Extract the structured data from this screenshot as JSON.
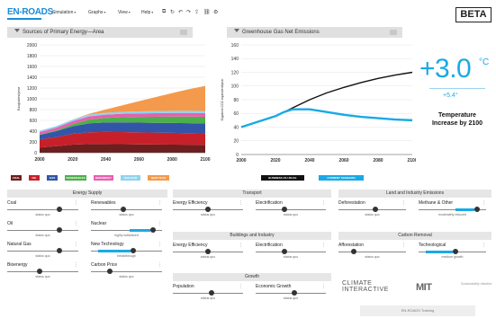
{
  "app": {
    "logo": "EN-ROADS",
    "menus": [
      "Simulation",
      "Graphs",
      "View",
      "Help"
    ],
    "toolbar_icons": [
      "copy-icon",
      "refresh-icon",
      "undo-icon",
      "redo-icon",
      "share-icon",
      "link-icon",
      "settings-icon"
    ],
    "beta_label": "BETA"
  },
  "energy_chart": {
    "title": "Sources of Primary Energy—Area",
    "header_button": "≡",
    "ylabel": "Exajoules/year",
    "legend": [
      {
        "label": "COAL",
        "color": "#6b1f1f"
      },
      {
        "label": "OIL",
        "color": "#c8202a"
      },
      {
        "label": "GAS",
        "color": "#3355a8"
      },
      {
        "label": "RENEWABLES",
        "color": "#4caf4a"
      },
      {
        "label": "BIOENERGY",
        "color": "#e860b0"
      },
      {
        "label": "NUCLEAR",
        "color": "#8fd4ef"
      },
      {
        "label": "NEW TECH",
        "color": "#f49a4c"
      }
    ]
  },
  "ghg_chart": {
    "title": "Greenhouse Gas Net Emissions",
    "header_button": "≡",
    "ylabel": "Gigatons CO2 equivalent/year",
    "legend": [
      {
        "label": "BUSINESS AS USUAL",
        "color": "#111111"
      },
      {
        "label": "CURRENT SCENARIO",
        "color": "#19a9e6"
      }
    ]
  },
  "temperature": {
    "value": "+3.0",
    "unit": "°C",
    "fahrenheit": "+5.4°",
    "label": "Temperature Increase by 2100"
  },
  "chart_data": [
    {
      "type": "area",
      "title": "Sources of Primary Energy—Area",
      "xlabel": "",
      "ylabel": "Exajoules/year",
      "x": [
        2000,
        2010,
        2020,
        2030,
        2040,
        2050,
        2060,
        2070,
        2080,
        2090,
        2100
      ],
      "xlim": [
        2000,
        2100
      ],
      "ylim": [
        0,
        2000
      ],
      "xticks": [
        2000,
        2020,
        2040,
        2060,
        2080,
        2100
      ],
      "yticks": [
        0,
        200,
        400,
        600,
        800,
        1000,
        1200,
        1400,
        1600,
        1800,
        2000
      ],
      "series": [
        {
          "name": "COAL",
          "values": [
            95,
            120,
            150,
            160,
            160,
            158,
            155,
            152,
            150,
            148,
            145
          ]
        },
        {
          "name": "OIL",
          "values": [
            150,
            170,
            200,
            220,
            225,
            225,
            222,
            220,
            218,
            215,
            212
          ]
        },
        {
          "name": "GAS",
          "values": [
            85,
            110,
            140,
            165,
            175,
            180,
            182,
            183,
            184,
            185,
            185
          ]
        },
        {
          "name": "RENEWABLES",
          "values": [
            8,
            15,
            40,
            70,
            85,
            95,
            105,
            112,
            118,
            122,
            125
          ]
        },
        {
          "name": "BIOENERGY",
          "values": [
            45,
            50,
            55,
            60,
            62,
            64,
            65,
            66,
            67,
            68,
            68
          ]
        },
        {
          "name": "NUCLEAR",
          "values": [
            25,
            28,
            30,
            33,
            35,
            37,
            38,
            39,
            40,
            40,
            40
          ]
        },
        {
          "name": "NEW TECH",
          "values": [
            0,
            0,
            0,
            15,
            60,
            120,
            190,
            260,
            330,
            400,
            465
          ]
        }
      ]
    },
    {
      "type": "line",
      "title": "Greenhouse Gas Net Emissions",
      "xlabel": "",
      "ylabel": "Gigatons CO2 equivalent/year",
      "x": [
        2000,
        2010,
        2020,
        2025,
        2030,
        2040,
        2050,
        2060,
        2070,
        2080,
        2090,
        2100
      ],
      "xlim": [
        2000,
        2100
      ],
      "ylim": [
        0,
        160
      ],
      "xticks": [
        2000,
        2020,
        2040,
        2060,
        2080,
        2100
      ],
      "yticks": [
        0,
        20,
        40,
        60,
        80,
        100,
        120,
        140,
        160
      ],
      "series": [
        {
          "name": "BUSINESS AS USUAL",
          "values": [
            40,
            48,
            56,
            62,
            68,
            80,
            90,
            98,
            105,
            111,
            116,
            120
          ]
        },
        {
          "name": "CURRENT SCENARIO",
          "values": [
            40,
            48,
            56,
            62,
            66,
            66,
            62,
            58,
            55,
            53,
            51,
            50
          ]
        }
      ]
    }
  ],
  "panels": {
    "energy_supply": {
      "title": "Energy Supply",
      "sliders": [
        {
          "label": "Coal",
          "status": "status quo",
          "level": 0.75
        },
        {
          "label": "Renewables",
          "status": "status quo",
          "level": 0.45
        },
        {
          "label": "Oil",
          "status": "status quo",
          "level": 0.75
        },
        {
          "label": "Nuclear",
          "status": "highly subsidized",
          "level": 0.9,
          "active": true
        },
        {
          "label": "Natural Gas",
          "status": "status quo",
          "level": 0.75
        },
        {
          "label": "New Technology",
          "status": "breakthrough",
          "level": 0.6,
          "active": true
        },
        {
          "label": "Bioenergy",
          "status": "status quo",
          "level": 0.45
        },
        {
          "label": "Carbon Price",
          "status": "status quo",
          "level": 0.25
        }
      ]
    },
    "transport": {
      "title": "Transport",
      "sliders": [
        {
          "label": "Energy Efficiency",
          "status": "status quo",
          "level": 0.5
        },
        {
          "label": "Electrification",
          "status": "status quo",
          "level": 0.4
        }
      ]
    },
    "buildings": {
      "title": "Buildings and Industry",
      "sliders": [
        {
          "label": "Energy Efficiency",
          "status": "status quo",
          "level": 0.5
        },
        {
          "label": "Electrification",
          "status": "status quo",
          "level": 0.4
        }
      ]
    },
    "growth": {
      "title": "Growth",
      "sliders": [
        {
          "label": "Population",
          "status": "status quo",
          "level": 0.55
        },
        {
          "label": "Economic Growth",
          "status": "status quo",
          "level": 0.55
        }
      ]
    },
    "land": {
      "title": "Land and Industry Emissions",
      "sliders": [
        {
          "label": "Deforestation",
          "status": "status quo",
          "level": 0.55
        },
        {
          "label": "Methane & Other",
          "status": "moderately reduced",
          "level": 0.9,
          "active": true
        }
      ]
    },
    "carbon_removal": {
      "title": "Carbon Removal",
      "sliders": [
        {
          "label": "Afforestation",
          "status": "status quo",
          "level": 0.2
        },
        {
          "label": "Technological",
          "status": "medium growth",
          "level": 0.55,
          "active": true
        }
      ]
    }
  },
  "footer": {
    "climate_line1": "CLIMATE",
    "climate_line2": "INTERACTIVE",
    "mit": "MIT",
    "mit_sub": "Sustainability Initiative",
    "training": "EN-ROADS Training"
  }
}
